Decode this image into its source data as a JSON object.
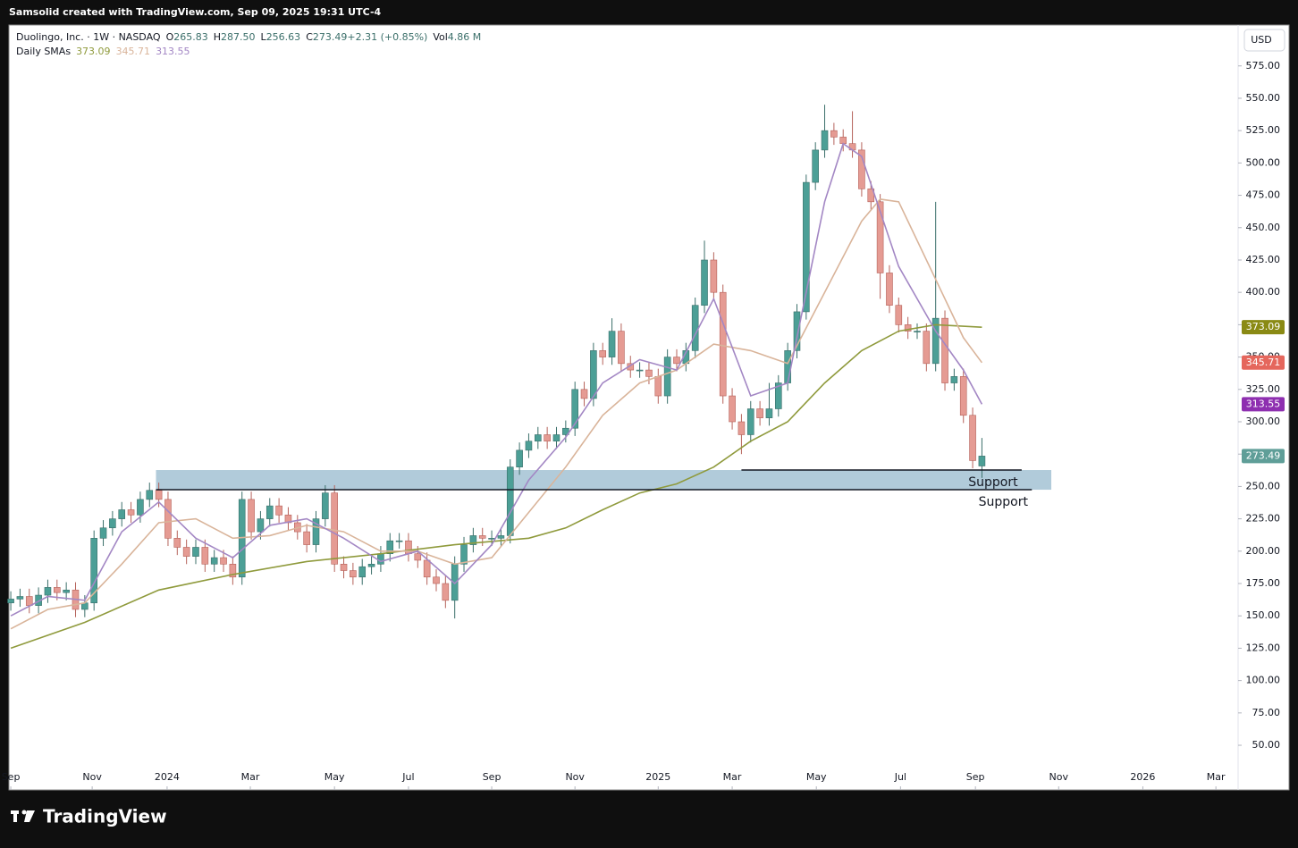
{
  "top_bar": "Samsolid created with TradingView.com, Sep 09, 2025 19:31 UTC-4",
  "footer_logo": "TradingView",
  "currency": "USD",
  "chart_data": {
    "type": "candlestick",
    "symbol": "Duolingo, Inc. · 1W · NASDAQ",
    "quote": [
      {
        "label": "O",
        "text": "265.83"
      },
      {
        "label": "H",
        "text": "287.50"
      },
      {
        "label": "L",
        "text": "256.63"
      },
      {
        "label": "C",
        "text": "273.49"
      },
      {
        "label": "",
        "text": "+2.31 (+0.85%)"
      },
      {
        "label": "Vol",
        "text": "4.86 M"
      }
    ],
    "indicator_label": "Daily SMAs",
    "up_color": "#4c9f96",
    "down_color": "#e59b93",
    "up_wick": "#3b6f6a",
    "down_wick": "#b5625a",
    "open": [
      160,
      163,
      165,
      158,
      166,
      172,
      168,
      170,
      155,
      160,
      210,
      218,
      225,
      232,
      228,
      240,
      247,
      240,
      210,
      203,
      196,
      203,
      190,
      195,
      190,
      180,
      240,
      215,
      225,
      235,
      228,
      222,
      215,
      205,
      225,
      245,
      190,
      185,
      180,
      188,
      190,
      198,
      208,
      208,
      198,
      193,
      180,
      175,
      162,
      190,
      205,
      212,
      210,
      210,
      212,
      265,
      278,
      285,
      290,
      285,
      290,
      295,
      325,
      318,
      355,
      350,
      370,
      345,
      340,
      340,
      335,
      320,
      350,
      345,
      355,
      390,
      425,
      400,
      320,
      300,
      290,
      310,
      303,
      310,
      330,
      355,
      385,
      485,
      510,
      525,
      520,
      515,
      510,
      480,
      470,
      415,
      390,
      375,
      370,
      370,
      345,
      380,
      330,
      335,
      305,
      265.83
    ],
    "high": [
      169,
      171,
      171,
      172,
      178,
      178,
      176,
      176,
      166,
      216,
      224,
      231,
      238,
      238,
      246,
      253,
      253,
      246,
      216,
      209,
      209,
      209,
      201,
      201,
      196,
      246,
      246,
      231,
      241,
      241,
      234,
      228,
      221,
      231,
      251,
      251,
      196,
      191,
      194,
      196,
      204,
      214,
      214,
      214,
      204,
      199,
      186,
      181,
      196,
      211,
      218,
      218,
      216,
      218,
      271,
      284,
      291,
      296,
      296,
      296,
      301,
      331,
      331,
      361,
      361,
      380,
      376,
      351,
      346,
      346,
      341,
      356,
      356,
      361,
      396,
      440,
      431,
      406,
      326,
      306,
      316,
      316,
      330,
      336,
      361,
      391,
      491,
      516,
      545,
      531,
      526,
      540,
      516,
      486,
      476,
      421,
      396,
      381,
      376,
      376,
      470,
      386,
      341,
      341,
      311,
      287.5
    ],
    "low": [
      154,
      157,
      152,
      152,
      160,
      162,
      162,
      149,
      149,
      154,
      204,
      212,
      219,
      222,
      222,
      234,
      234,
      204,
      197,
      190,
      190,
      184,
      184,
      184,
      174,
      174,
      209,
      209,
      219,
      222,
      216,
      209,
      199,
      199,
      219,
      184,
      179,
      174,
      174,
      182,
      184,
      192,
      202,
      192,
      187,
      174,
      169,
      156,
      148,
      184,
      199,
      204,
      204,
      204,
      206,
      259,
      272,
      279,
      279,
      279,
      284,
      289,
      312,
      312,
      344,
      344,
      339,
      334,
      334,
      329,
      314,
      314,
      339,
      339,
      349,
      384,
      394,
      314,
      294,
      275,
      284,
      297,
      297,
      304,
      324,
      349,
      379,
      479,
      504,
      514,
      509,
      504,
      474,
      464,
      395,
      384,
      369,
      364,
      364,
      339,
      339,
      324,
      324,
      299,
      264,
      256.63
    ],
    "close": [
      163,
      165,
      158,
      166,
      172,
      168,
      170,
      155,
      160,
      210,
      218,
      225,
      232,
      228,
      240,
      247,
      240,
      210,
      203,
      196,
      203,
      190,
      195,
      190,
      180,
      240,
      215,
      225,
      235,
      228,
      222,
      215,
      205,
      225,
      245,
      190,
      185,
      180,
      188,
      190,
      198,
      208,
      208,
      198,
      193,
      180,
      175,
      162,
      190,
      205,
      212,
      210,
      210,
      212,
      265,
      278,
      285,
      290,
      285,
      290,
      295,
      325,
      318,
      355,
      350,
      370,
      345,
      340,
      340,
      335,
      320,
      350,
      345,
      355,
      390,
      425,
      400,
      320,
      300,
      290,
      310,
      303,
      310,
      330,
      355,
      385,
      485,
      510,
      525,
      520,
      515,
      510,
      480,
      470,
      415,
      390,
      375,
      370,
      370,
      345,
      380,
      330,
      335,
      305,
      270,
      273.49
    ],
    "last_price_color": "#5f9e98",
    "series": [
      {
        "color": "#8f9a3c",
        "badge_color": "#8a8a14",
        "x": [
          0,
          8,
          16,
          24,
          32,
          40,
          48,
          56,
          60,
          64,
          68,
          72,
          76,
          80,
          84,
          88,
          92,
          96,
          100,
          105
        ],
        "values": [
          125,
          145,
          170,
          182,
          192,
          198,
          205,
          210,
          218,
          232,
          245,
          252,
          265,
          285,
          300,
          330,
          355,
          370,
          375,
          373.09
        ]
      },
      {
        "color": "#d9b49a",
        "badge_color": "#e5675d",
        "x": [
          0,
          4,
          8,
          12,
          16,
          20,
          24,
          28,
          32,
          36,
          40,
          44,
          48,
          52,
          56,
          60,
          64,
          68,
          72,
          76,
          80,
          84,
          88,
          92,
          94,
          96,
          100,
          103,
          105
        ],
        "values": [
          140,
          155,
          160,
          190,
          222,
          225,
          210,
          212,
          220,
          215,
          200,
          200,
          190,
          195,
          230,
          265,
          305,
          330,
          340,
          360,
          355,
          345,
          400,
          455,
          472,
          470,
          410,
          365,
          345.71
        ]
      },
      {
        "color": "#a387c4",
        "badge_color": "#8e2fb0",
        "x": [
          0,
          4,
          8,
          12,
          16,
          20,
          24,
          28,
          32,
          36,
          40,
          44,
          48,
          52,
          56,
          60,
          64,
          68,
          72,
          76,
          80,
          84,
          88,
          90,
          92,
          96,
          100,
          103,
          105
        ],
        "values": [
          150,
          165,
          162,
          215,
          238,
          210,
          195,
          220,
          225,
          210,
          192,
          200,
          175,
          205,
          255,
          288,
          330,
          348,
          340,
          395,
          320,
          330,
          470,
          515,
          505,
          420,
          370,
          340,
          313.55
        ]
      }
    ],
    "zone": {
      "from": 247.5,
      "to": 262.7,
      "x": [
        15.7,
        112.5
      ],
      "color": "#a9c5d6"
    },
    "levels": [
      {
        "value": 262.7,
        "x": [
          79,
          109.3
        ],
        "label": "Support"
      },
      {
        "value": 247.5,
        "x": [
          15.7,
          110.4
        ],
        "label": "Support"
      }
    ],
    "xlim": [
      -0.2,
      132.7
    ],
    "xticks": [
      {
        "value": 0,
        "label": "Sep"
      },
      {
        "value": 8.8,
        "label": "Nov"
      },
      {
        "value": 16.9,
        "label": "2024"
      },
      {
        "value": 25.9,
        "label": "Mar"
      },
      {
        "value": 35,
        "label": "May"
      },
      {
        "value": 43,
        "label": "Jul"
      },
      {
        "value": 52,
        "label": "Sep"
      },
      {
        "value": 61,
        "label": "Nov"
      },
      {
        "value": 70,
        "label": "2025"
      },
      {
        "value": 78,
        "label": "Mar"
      },
      {
        "value": 87.1,
        "label": "May"
      },
      {
        "value": 96.2,
        "label": "Jul"
      },
      {
        "value": 104.3,
        "label": "Sep"
      },
      {
        "value": 113.3,
        "label": "Nov"
      },
      {
        "value": 122.4,
        "label": "2026"
      },
      {
        "value": 130.3,
        "label": "Mar"
      }
    ],
    "ylim": [
      15.5,
      606.6
    ],
    "yticks": [
      {
        "value": 50,
        "label": "50.00"
      },
      {
        "value": 75,
        "label": "75.00"
      },
      {
        "value": 100,
        "label": "100.00"
      },
      {
        "value": 125,
        "label": "125.00"
      },
      {
        "value": 150,
        "label": "150.00"
      },
      {
        "value": 175,
        "label": "175.00"
      },
      {
        "value": 200,
        "label": "200.00"
      },
      {
        "value": 225,
        "label": "225.00"
      },
      {
        "value": 250,
        "label": "250.00"
      },
      {
        "value": 275,
        "label": "275.00"
      },
      {
        "value": 300,
        "label": "300.00"
      },
      {
        "value": 325,
        "label": "325.00"
      },
      {
        "value": 350,
        "label": "350.00"
      },
      {
        "value": 375,
        "label": "375.00"
      },
      {
        "value": 400,
        "label": "400.00"
      },
      {
        "value": 425,
        "label": "425.00"
      },
      {
        "value": 450,
        "label": "450.00"
      },
      {
        "value": 475,
        "label": "475.00"
      },
      {
        "value": 500,
        "label": "500.00"
      },
      {
        "value": 525,
        "label": "525.00"
      },
      {
        "value": 550,
        "label": "550.00"
      },
      {
        "value": 575,
        "label": "575.00"
      }
    ]
  }
}
